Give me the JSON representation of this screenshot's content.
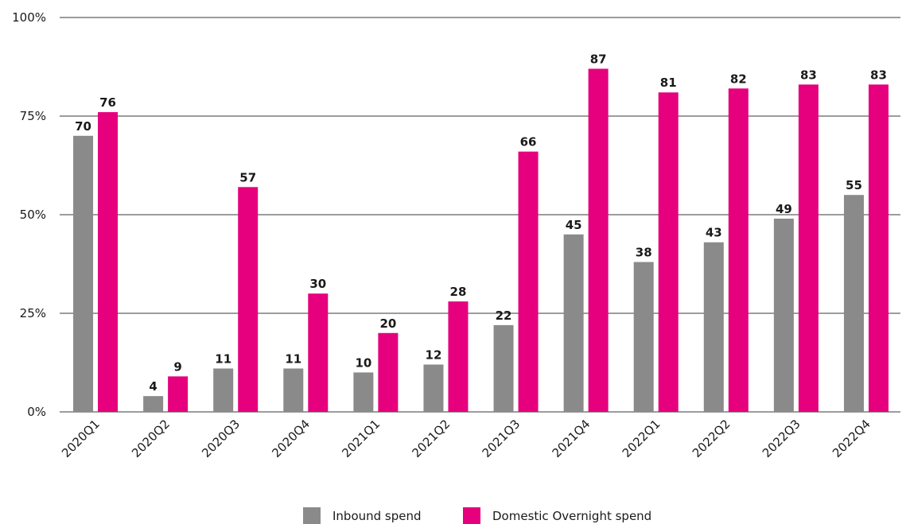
{
  "chart_data": {
    "type": "bar",
    "categories": [
      "2020Q1",
      "2020Q2",
      "2020Q3",
      "2020Q4",
      "2021Q1",
      "2021Q2",
      "2021Q3",
      "2021Q4",
      "2022Q1",
      "2022Q2",
      "2022Q3",
      "2022Q4"
    ],
    "series": [
      {
        "name": "Inbound spend",
        "color": "#8a8a8a",
        "values": [
          70,
          4,
          11,
          11,
          10,
          12,
          22,
          45,
          38,
          43,
          49,
          55
        ]
      },
      {
        "name": "Domestic Overnight spend",
        "color": "#e6007e",
        "values": [
          76,
          9,
          57,
          30,
          20,
          28,
          66,
          87,
          81,
          82,
          83,
          83
        ]
      }
    ],
    "ylim": [
      0,
      100
    ],
    "yticks": [
      0,
      25,
      50,
      75,
      100
    ],
    "ytick_labels": [
      "0%",
      "25%",
      "50%",
      "75%",
      "100%"
    ],
    "grid": true,
    "legend_position": "bottom-center",
    "title": "",
    "xlabel": "",
    "ylabel": ""
  }
}
